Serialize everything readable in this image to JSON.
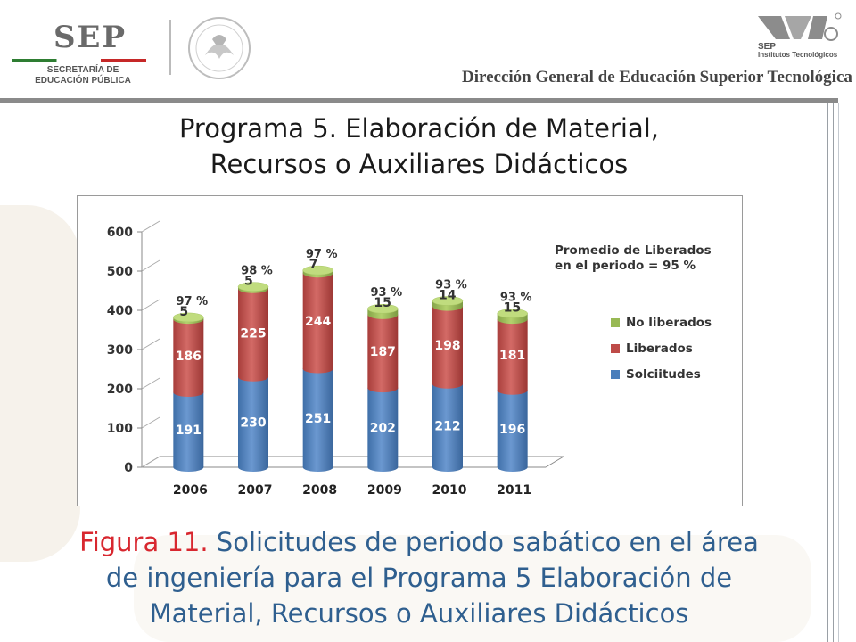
{
  "header": {
    "sep_word": "SEP",
    "sep_subtitle_1": "SECRETARÍA DE",
    "sep_subtitle_2": "EDUCACIÓN PÚBLICA",
    "seal_label": "ESTADOS UNIDOS MEXICANOS",
    "it_word": "SEP",
    "it_subtitle_1": "Institutos Tecnológicos",
    "dgest": "Dirección General de Educación Superior Tecnológica"
  },
  "slide_title_1": "Programa 5. Elaboración de Material,",
  "slide_title_2": "Recursos o Auxiliares Didácticos",
  "caption": {
    "figure_label": "Figura 11.",
    "text_1": " Solicitudes de periodo sabático en el área",
    "text_2": "de ingeniería para el Programa 5 Elaboración de",
    "text_3": "Material, Recursos o Auxiliares Didácticos"
  },
  "colors": {
    "solicitudes": "#4a7ebb",
    "liberados": "#be4b48",
    "no_liberados": "#98b954",
    "caption_blue": "#2f5f8f",
    "caption_red": "#d8272f"
  },
  "chart_data": {
    "type": "bar",
    "stacked": true,
    "categories": [
      "2006",
      "2007",
      "2008",
      "2009",
      "2010",
      "2011"
    ],
    "series": [
      {
        "name": "Solciitudes",
        "values": [
          191,
          230,
          251,
          202,
          212,
          196
        ]
      },
      {
        "name": "Liberados",
        "values": [
          186,
          225,
          244,
          187,
          198,
          181
        ]
      },
      {
        "name": "No liberados",
        "values": [
          5,
          5,
          7,
          15,
          14,
          15
        ]
      }
    ],
    "percent_labels": [
      "97 %",
      "98 %",
      "97 %",
      "93 %",
      "93 %",
      "93 %"
    ],
    "annotation_1": "Promedio de Liberados",
    "annotation_2": "en el periodo = 95 %",
    "yticks": [
      "0",
      "100",
      "200",
      "300",
      "400",
      "500",
      "600"
    ],
    "ylim": [
      0,
      600
    ],
    "legend_position": "right",
    "grid": false
  }
}
